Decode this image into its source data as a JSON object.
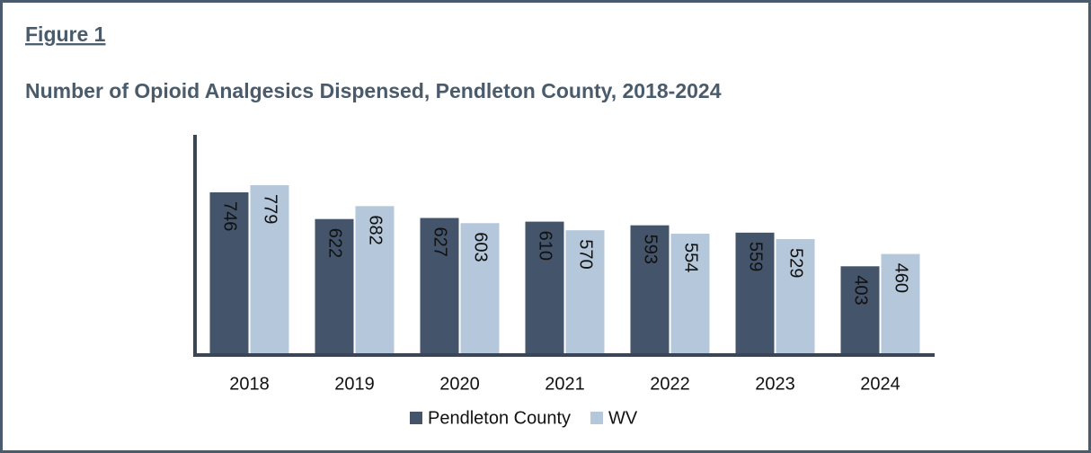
{
  "figure_label": "Figure 1",
  "chart_data": {
    "type": "bar",
    "title": "Number of Opioid Analgesics Dispensed, Pendleton County, 2018-2024",
    "categories": [
      "2018",
      "2019",
      "2020",
      "2021",
      "2022",
      "2023",
      "2024"
    ],
    "series": [
      {
        "name": "Pendleton County",
        "color": "#44546a",
        "values": [
          746,
          622,
          627,
          610,
          593,
          559,
          403
        ]
      },
      {
        "name": "WV",
        "color": "#b5c7da",
        "values": [
          779,
          682,
          603,
          570,
          554,
          529,
          460
        ]
      }
    ],
    "ylim": [
      0,
      1000
    ]
  }
}
